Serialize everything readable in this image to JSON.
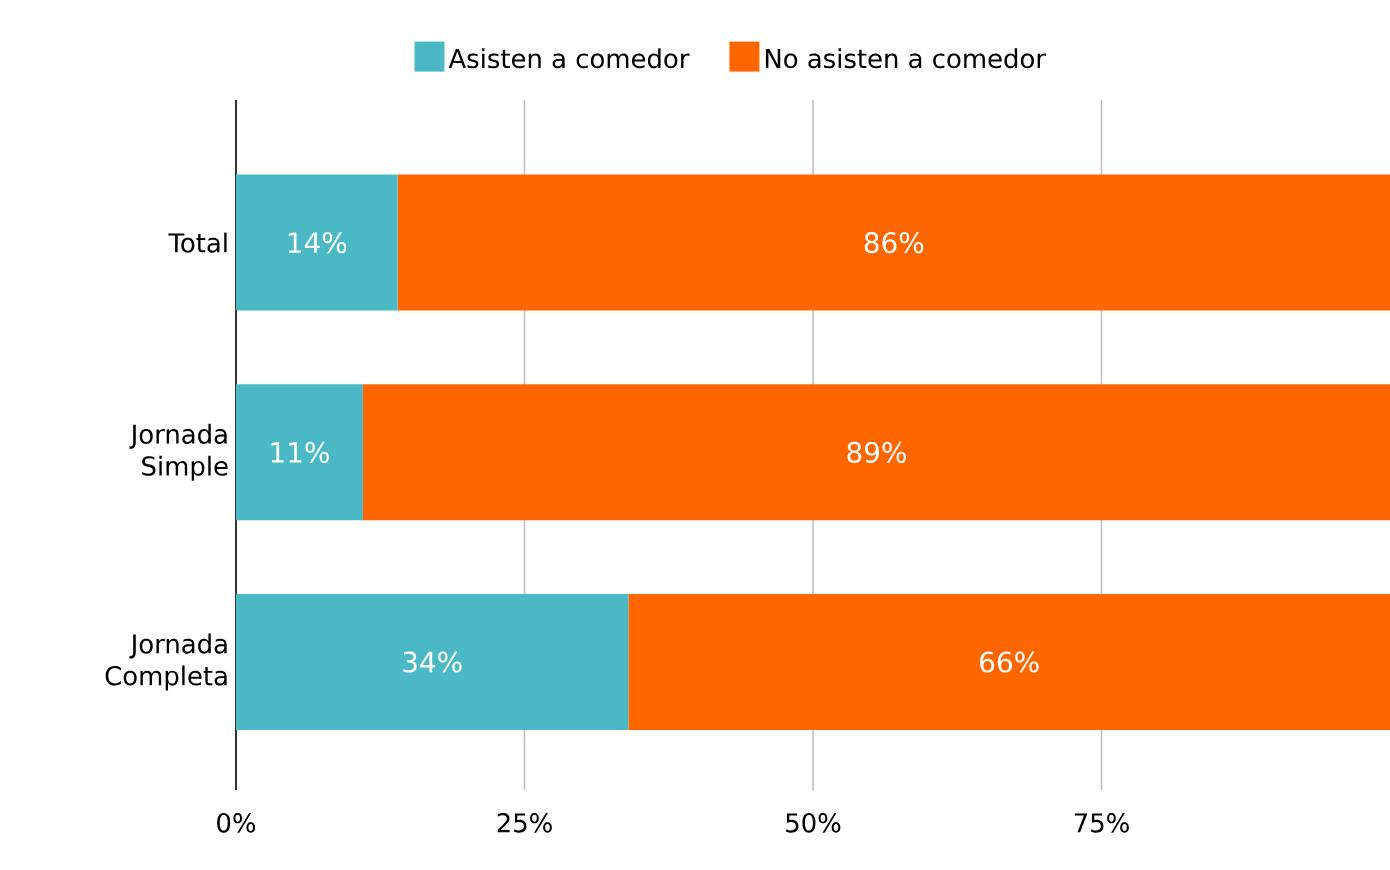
{
  "chart_data": {
    "type": "bar",
    "orientation": "horizontal",
    "stacked": true,
    "categories": [
      "Total",
      "Jornada Simple",
      "Jornada Completa"
    ],
    "series": [
      {
        "name": "Asisten a comedor",
        "color": "#4ab9c5",
        "values": [
          14,
          11,
          34
        ],
        "value_labels": [
          "14%",
          "11%",
          "34%"
        ]
      },
      {
        "name": "No asisten a comedor",
        "color": "#ff6600",
        "values": [
          86,
          89,
          66
        ],
        "value_labels": [
          "86%",
          "89%",
          "66%"
        ]
      }
    ],
    "xlim": [
      0,
      100
    ],
    "xticks": [
      {
        "value": 0,
        "label": "0%"
      },
      {
        "value": 25,
        "label": "25%"
      },
      {
        "value": 50,
        "label": "50%"
      },
      {
        "value": 75,
        "label": "75%"
      }
    ],
    "grid": "x",
    "legend": "top"
  }
}
